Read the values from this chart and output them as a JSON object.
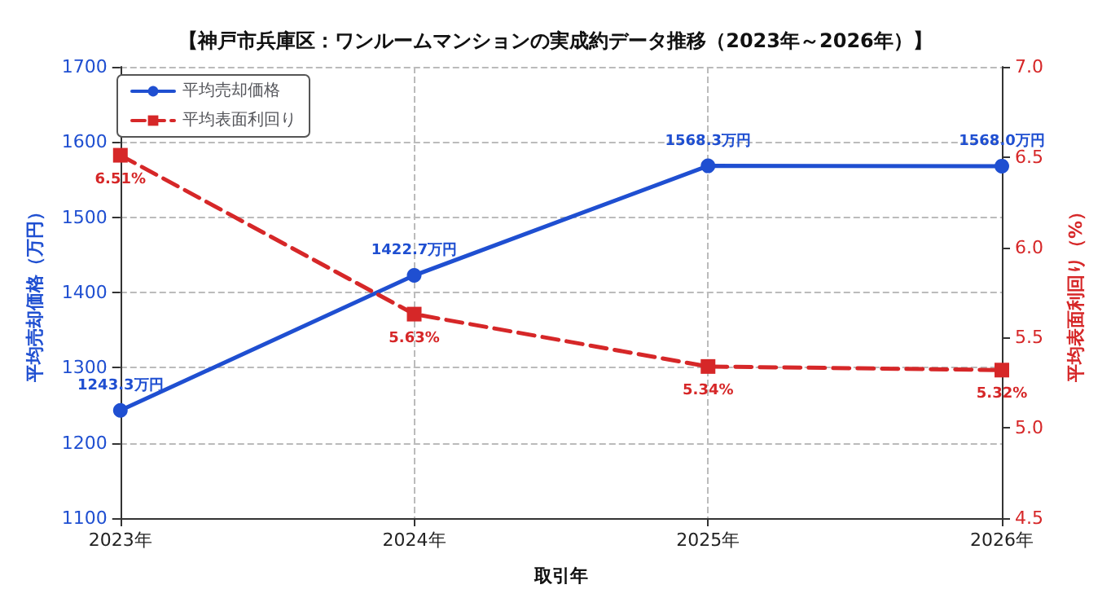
{
  "chart_data": {
    "type": "line",
    "title": "【神戸市兵庫区：ワンルームマンションの実成約データ推移（2023年～2026年）】",
    "xlabel": "取引年",
    "ylabel": "平均売却価格（万円）",
    "y2label": "平均表面利回り（%）",
    "categories": [
      "2023年",
      "2024年",
      "2025年",
      "2026年"
    ],
    "series": [
      {
        "name": "平均売却価格",
        "color": "#1f4fd1",
        "values": [
          1243.3,
          1422.7,
          1568.3,
          1568.0
        ],
        "value_labels": [
          "1243.3万円",
          "1422.7万円",
          "1568.3万円",
          "1568.0万円"
        ],
        "marker": "circle",
        "line_style": "solid"
      },
      {
        "name": "平均表面利回り",
        "color": "#d62728",
        "values": [
          6.51,
          5.63,
          5.34,
          5.32
        ],
        "value_labels": [
          "6.51%",
          "5.63%",
          "5.34%",
          "5.32%"
        ],
        "marker": "square",
        "line_style": "dashed",
        "axis": "y2"
      }
    ],
    "ylim": [
      1100,
      1700
    ],
    "yticks": [
      1100,
      1200,
      1300,
      1400,
      1500,
      1600,
      1700
    ],
    "y2lim": [
      4.5,
      7.0
    ],
    "y2ticks": [
      {
        "value": 4.5,
        "label": "4.5"
      },
      {
        "value": 5.0,
        "label": "5.0"
      },
      {
        "value": 5.5,
        "label": "5.5"
      },
      {
        "value": 6.0,
        "label": "6.0"
      },
      {
        "value": 6.5,
        "label": "6.5"
      },
      {
        "value": 7.0,
        "label": "7.0"
      }
    ],
    "grid": true,
    "legend": "top left"
  }
}
